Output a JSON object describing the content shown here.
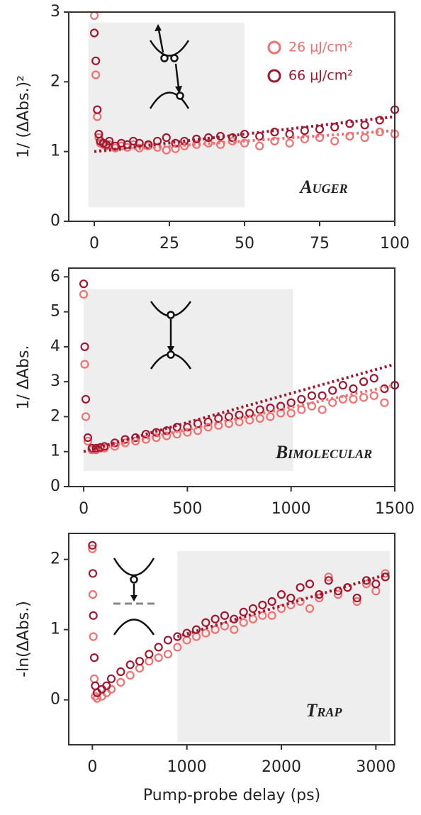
{
  "chart_data": [
    {
      "type": "scatter",
      "ylabel": "1/ (ΔAbs.)²",
      "annotation": "Auger",
      "legend": "upper right",
      "xlim": [
        -8.5,
        100
      ],
      "xticks": [
        0,
        25,
        50,
        75,
        100
      ],
      "ylim": [
        0,
        3
      ],
      "yticks": [
        0,
        1,
        2,
        3
      ],
      "shaded_region": {
        "x": [
          -2,
          50
        ],
        "y": [
          0.2,
          2.85
        ]
      },
      "x": [
        0,
        0.5,
        1,
        1.5,
        2,
        3,
        4,
        5,
        7,
        9,
        11,
        13,
        15,
        18,
        21,
        24,
        27,
        30,
        34,
        38,
        42,
        46,
        50,
        55,
        60,
        65,
        70,
        75,
        80,
        85,
        90,
        95,
        100
      ],
      "series": [
        {
          "name": "26 μJ/cm²",
          "color": "#f07070",
          "values": [
            2.95,
            2.1,
            1.5,
            1.2,
            1.12,
            1.1,
            1.08,
            1.1,
            1.05,
            1.08,
            1.06,
            1.1,
            1.05,
            1.08,
            1.06,
            1.02,
            1.04,
            1.08,
            1.1,
            1.12,
            1.1,
            1.15,
            1.12,
            1.08,
            1.15,
            1.12,
            1.18,
            1.2,
            1.15,
            1.22,
            1.2,
            1.28,
            1.25
          ]
        },
        {
          "name": "66 μJ/cm²",
          "color": "#a01830",
          "values": [
            2.7,
            2.3,
            1.6,
            1.25,
            1.15,
            1.12,
            1.1,
            1.15,
            1.08,
            1.12,
            1.1,
            1.15,
            1.12,
            1.1,
            1.15,
            1.2,
            1.12,
            1.15,
            1.18,
            1.2,
            1.22,
            1.2,
            1.25,
            1.22,
            1.28,
            1.25,
            1.3,
            1.32,
            1.35,
            1.4,
            1.38,
            1.45,
            1.6
          ]
        }
      ],
      "fits": [
        {
          "color": "#f07070",
          "x": [
            0,
            100
          ],
          "values": [
            1.0,
            1.3
          ]
        },
        {
          "color": "#a01830",
          "x": [
            0,
            100
          ],
          "values": [
            1.0,
            1.5
          ]
        }
      ]
    },
    {
      "type": "scatter",
      "ylabel": "1/ ΔAbs.",
      "annotation": "Bimolecular",
      "xlim": [
        -72,
        1500
      ],
      "xticks": [
        0,
        500,
        1000,
        1500
      ],
      "ylim": [
        0,
        6.25
      ],
      "yticks": [
        0,
        1,
        2,
        3,
        4,
        5,
        6
      ],
      "shaded_region": {
        "x": [
          0,
          1010
        ],
        "y": [
          0.45,
          5.65
        ]
      },
      "x": [
        0,
        5,
        10,
        20,
        40,
        60,
        80,
        100,
        150,
        200,
        250,
        300,
        350,
        400,
        450,
        500,
        550,
        600,
        650,
        700,
        750,
        800,
        850,
        900,
        950,
        1000,
        1050,
        1100,
        1150,
        1200,
        1250,
        1300,
        1350,
        1400,
        1450,
        1500
      ],
      "series": [
        {
          "color": "#f07070",
          "values": [
            5.5,
            3.5,
            2.0,
            1.3,
            1.05,
            1.05,
            1.1,
            1.1,
            1.15,
            1.25,
            1.3,
            1.35,
            1.4,
            1.45,
            1.5,
            1.55,
            1.6,
            1.7,
            1.75,
            1.8,
            1.85,
            1.9,
            1.95,
            2.0,
            2.1,
            2.1,
            2.2,
            2.3,
            2.2,
            2.4,
            2.5,
            2.5,
            2.55,
            2.6,
            2.4,
            2.9
          ]
        },
        {
          "color": "#a01830",
          "values": [
            5.8,
            4.0,
            2.5,
            1.4,
            1.1,
            1.1,
            1.12,
            1.15,
            1.25,
            1.35,
            1.4,
            1.5,
            1.55,
            1.6,
            1.7,
            1.7,
            1.8,
            1.85,
            1.95,
            2.0,
            2.05,
            2.1,
            2.2,
            2.25,
            2.3,
            2.4,
            2.5,
            2.6,
            2.6,
            2.75,
            2.9,
            2.8,
            3.0,
            3.1,
            2.8,
            2.9
          ]
        }
      ],
      "fits": [
        {
          "color": "#f07070",
          "x": [
            0,
            1500
          ],
          "values": [
            1.0,
            2.9
          ]
        },
        {
          "color": "#a01830",
          "x": [
            0,
            1500
          ],
          "values": [
            1.0,
            3.5
          ]
        }
      ]
    },
    {
      "type": "scatter",
      "ylabel": "-ln(ΔAbs.)",
      "xlabel": "Pump-probe delay (ps)",
      "annotation": "Trap",
      "xlim": [
        -250,
        3200
      ],
      "xticks": [
        0,
        1000,
        2000,
        3000
      ],
      "ylim": [
        -0.64,
        2.37
      ],
      "yticks": [
        0,
        1,
        2
      ],
      "shaded_region": {
        "x": [
          900,
          3150
        ],
        "y": [
          -0.6,
          2.12
        ]
      },
      "x": [
        0,
        5,
        10,
        20,
        30,
        50,
        100,
        150,
        200,
        300,
        400,
        500,
        600,
        700,
        800,
        900,
        1000,
        1100,
        1200,
        1300,
        1400,
        1500,
        1600,
        1700,
        1800,
        1900,
        2000,
        2100,
        2200,
        2300,
        2400,
        2500,
        2600,
        2700,
        2800,
        2900,
        3000,
        3100
      ],
      "series": [
        {
          "color": "#f07070",
          "values": [
            2.15,
            1.5,
            0.9,
            0.3,
            0.05,
            0.02,
            0.05,
            0.1,
            0.15,
            0.25,
            0.35,
            0.45,
            0.55,
            0.6,
            0.65,
            0.75,
            0.85,
            0.9,
            0.95,
            1.0,
            1.05,
            1.0,
            1.1,
            1.15,
            1.2,
            1.2,
            1.3,
            1.35,
            1.4,
            1.3,
            1.45,
            1.75,
            1.5,
            1.6,
            1.4,
            1.65,
            1.55,
            1.8
          ]
        },
        {
          "color": "#a01830",
          "values": [
            2.2,
            1.8,
            1.2,
            0.6,
            0.2,
            0.1,
            0.15,
            0.2,
            0.3,
            0.4,
            0.5,
            0.55,
            0.65,
            0.75,
            0.85,
            0.9,
            0.95,
            1.0,
            1.1,
            1.15,
            1.2,
            1.15,
            1.25,
            1.3,
            1.35,
            1.4,
            1.5,
            1.45,
            1.6,
            1.65,
            1.5,
            1.7,
            1.55,
            1.6,
            1.45,
            1.7,
            1.65,
            1.75
          ]
        }
      ],
      "fits": [
        {
          "color": "#a01830",
          "x": [
            900,
            3150
          ],
          "values": [
            0.9,
            1.8
          ]
        }
      ]
    }
  ]
}
